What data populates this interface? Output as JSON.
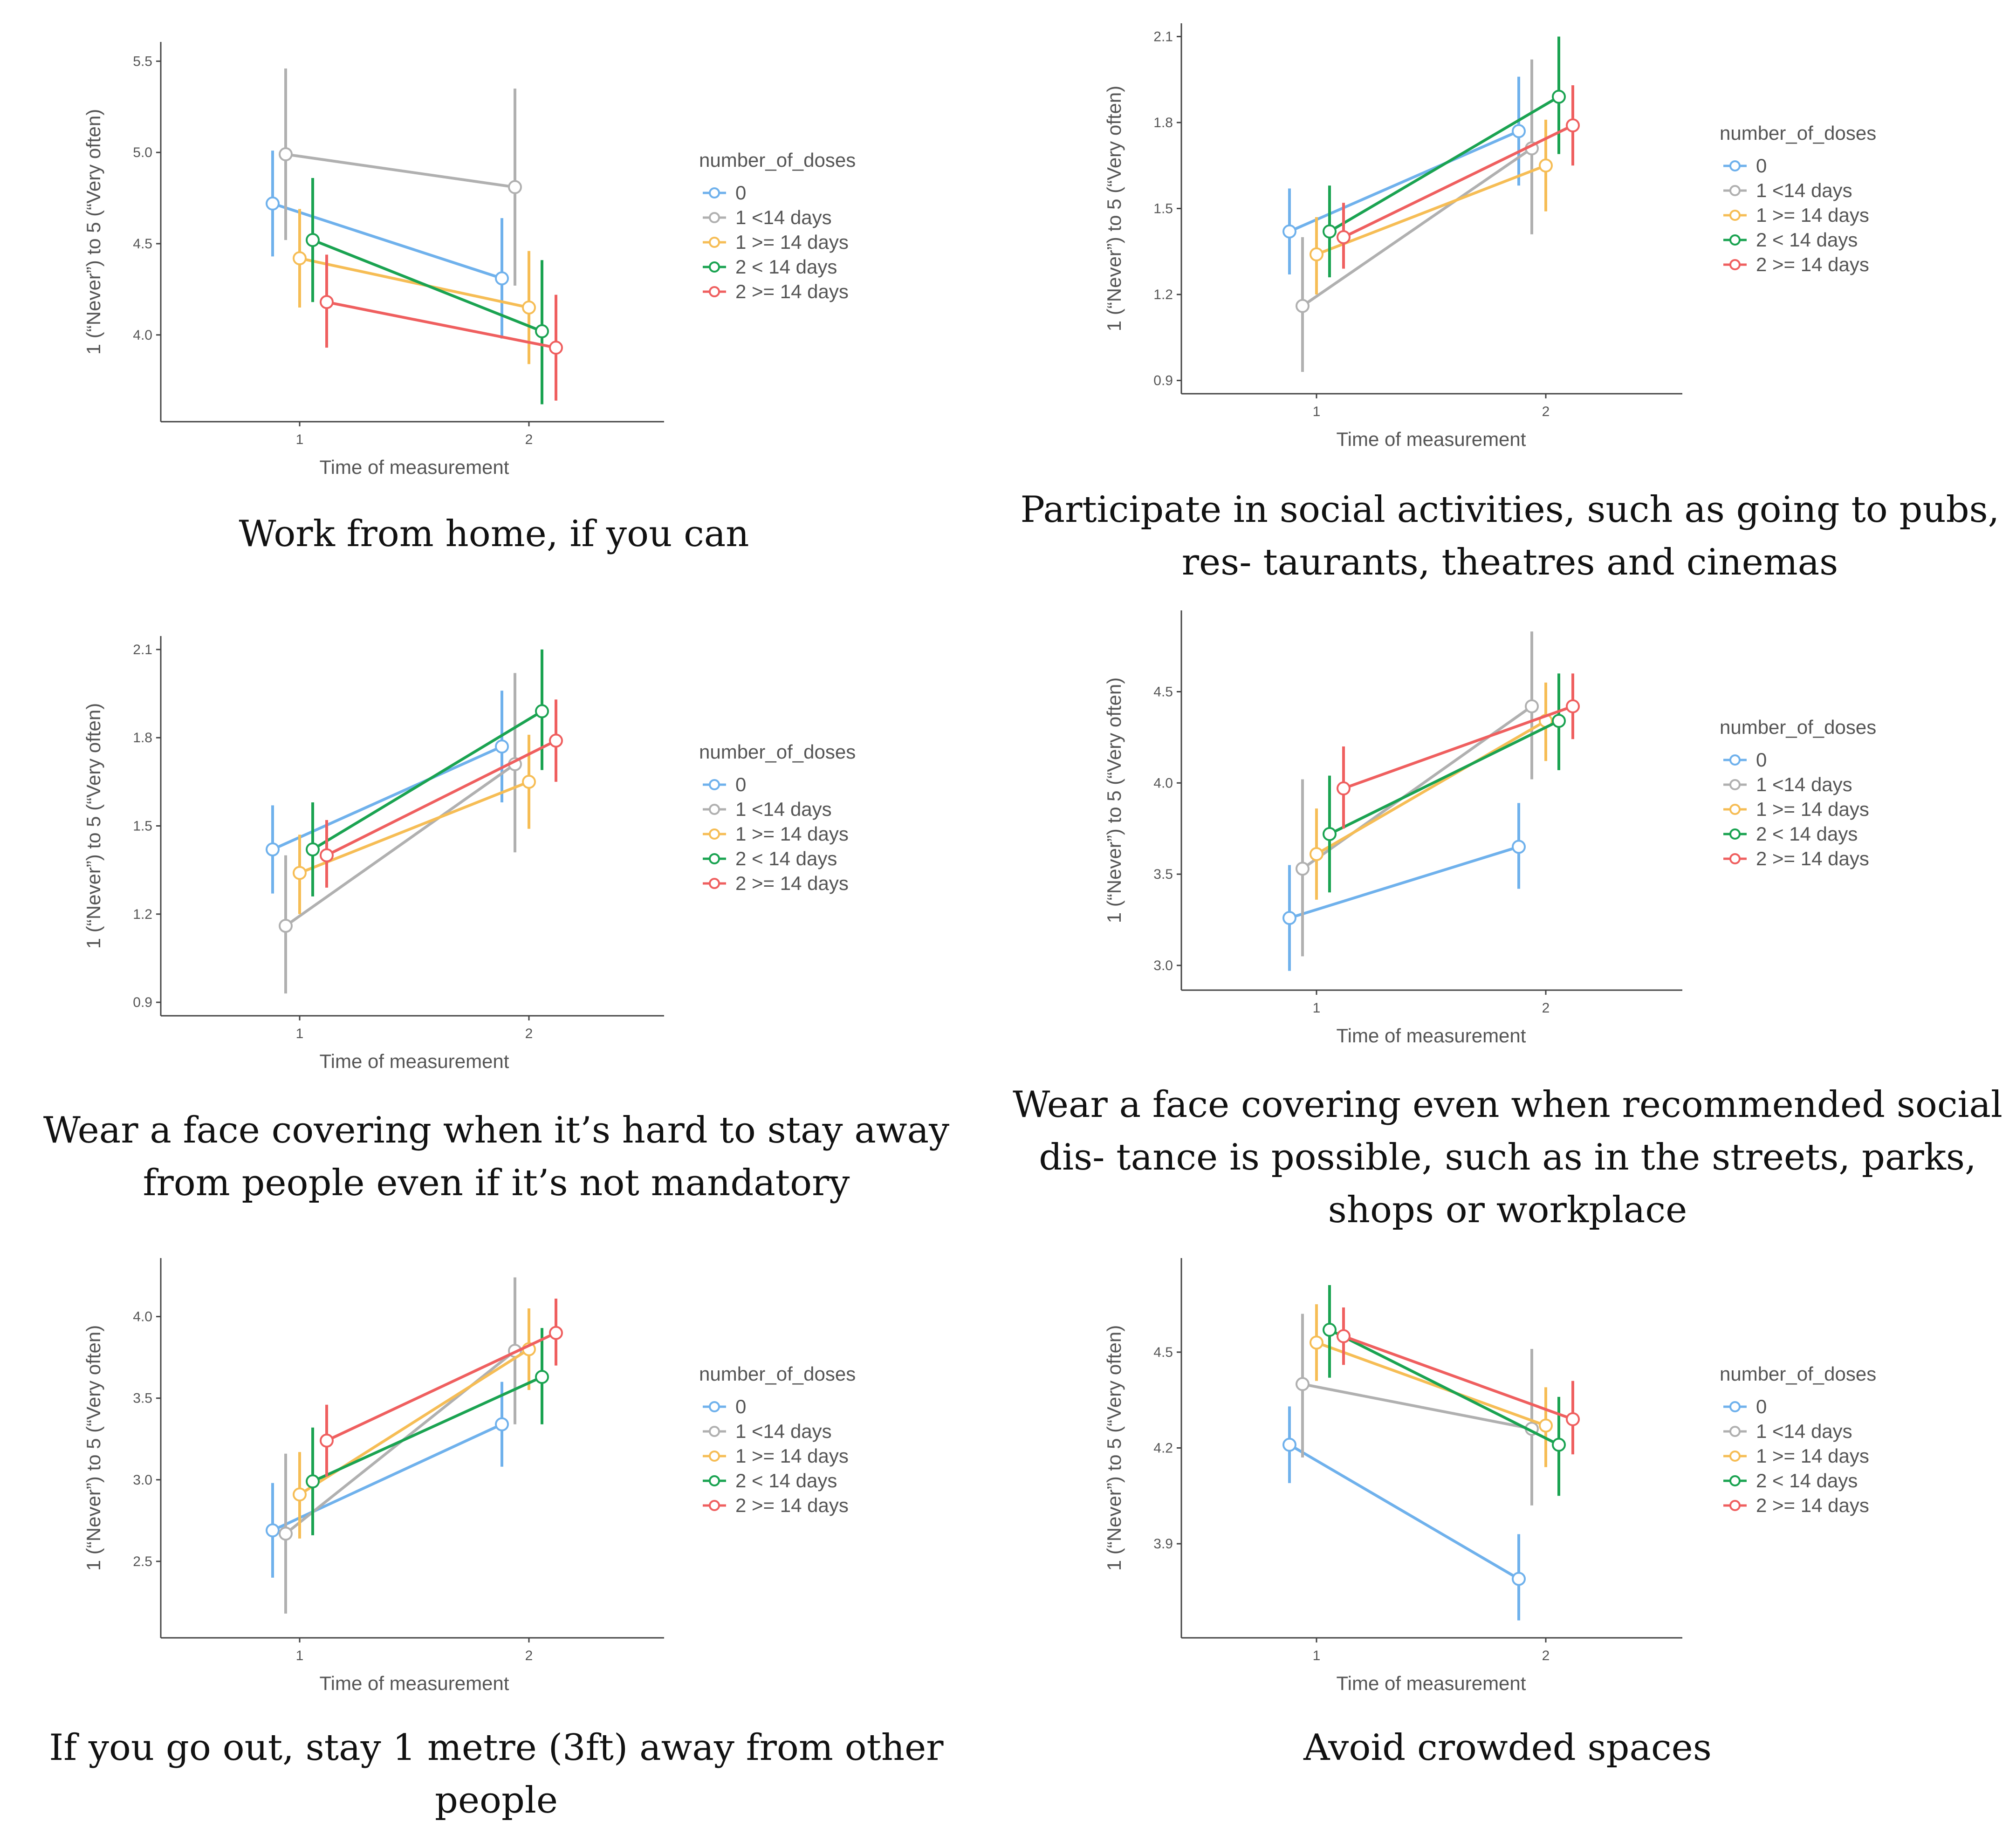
{
  "chart_data": [
    {
      "type": "line",
      "title": "Work from home, if you can",
      "xlabel": "Time of measurement",
      "ylabel": "1 (“Never”) to 5 (“Very often)",
      "x": [
        "1",
        "2"
      ],
      "yticks": [
        "4.0",
        "4.5",
        "5.0",
        "5.5"
      ],
      "ylim": [
        3.55,
        5.58
      ],
      "legend_title": "number_of_doses",
      "series": [
        {
          "name": "0",
          "color": "#6fb1ec",
          "values": [
            4.72,
            4.31
          ],
          "ci_low": [
            4.43,
            3.98
          ],
          "ci_high": [
            5.01,
            4.64
          ]
        },
        {
          "name": "1 <14 days",
          "color": "#b0b0b0",
          "values": [
            4.99,
            4.81
          ],
          "ci_low": [
            4.52,
            4.27
          ],
          "ci_high": [
            5.46,
            5.35
          ]
        },
        {
          "name": "1 >= 14 days",
          "color": "#f6bd55",
          "values": [
            4.42,
            4.15
          ],
          "ci_low": [
            4.15,
            3.84
          ],
          "ci_high": [
            4.69,
            4.46
          ]
        },
        {
          "name": "2 < 14 days",
          "color": "#1aa351",
          "values": [
            4.52,
            4.02
          ],
          "ci_low": [
            4.18,
            3.62
          ],
          "ci_high": [
            4.86,
            4.41
          ]
        },
        {
          "name": "2 >= 14 days",
          "color": "#ef5f5f",
          "values": [
            4.18,
            3.93
          ],
          "ci_low": [
            3.93,
            3.64
          ],
          "ci_high": [
            4.44,
            4.22
          ]
        }
      ]
    },
    {
      "type": "line",
      "title": "Participate in social activities, such as going to pubs, res- taurants, theatres and cinemas",
      "xlabel": "Time of measurement",
      "ylabel": "1 (“Never”) to 5 (“Very often)",
      "x": [
        "1",
        "2"
      ],
      "yticks": [
        "0.9",
        "1.2",
        "1.5",
        "1.8",
        "2.1"
      ],
      "ylim": [
        0.87,
        2.13
      ],
      "legend_title": "number_of_doses",
      "series": [
        {
          "name": "0",
          "color": "#6fb1ec",
          "values": [
            1.42,
            1.77
          ],
          "ci_low": [
            1.27,
            1.58
          ],
          "ci_high": [
            1.57,
            1.96
          ]
        },
        {
          "name": "1 <14 days",
          "color": "#b0b0b0",
          "values": [
            1.16,
            1.71
          ],
          "ci_low": [
            0.93,
            1.41
          ],
          "ci_high": [
            1.4,
            2.02
          ]
        },
        {
          "name": "1 >= 14 days",
          "color": "#f6bd55",
          "values": [
            1.34,
            1.65
          ],
          "ci_low": [
            1.2,
            1.49
          ],
          "ci_high": [
            1.47,
            1.81
          ]
        },
        {
          "name": "2 < 14 days",
          "color": "#1aa351",
          "values": [
            1.42,
            1.89
          ],
          "ci_low": [
            1.26,
            1.69
          ],
          "ci_high": [
            1.58,
            2.1
          ]
        },
        {
          "name": "2 >= 14 days",
          "color": "#ef5f5f",
          "values": [
            1.4,
            1.79
          ],
          "ci_low": [
            1.29,
            1.65
          ],
          "ci_high": [
            1.52,
            1.93
          ]
        }
      ]
    },
    {
      "type": "line",
      "title": "Wear a face covering when it’s hard to stay away from people even if it’s not mandatory",
      "xlabel": "Time of measurement",
      "ylabel": "1 (“Never”) to 5 (“Very often)",
      "x": [
        "1",
        "2"
      ],
      "yticks": [
        "0.9",
        "1.2",
        "1.5",
        "1.8",
        "2.1"
      ],
      "ylim": [
        0.87,
        2.13
      ],
      "legend_title": "number_of_doses",
      "series": [
        {
          "name": "0",
          "color": "#6fb1ec",
          "values": [
            1.42,
            1.77
          ],
          "ci_low": [
            1.27,
            1.58
          ],
          "ci_high": [
            1.57,
            1.96
          ]
        },
        {
          "name": "1 <14 days",
          "color": "#b0b0b0",
          "values": [
            1.16,
            1.71
          ],
          "ci_low": [
            0.93,
            1.41
          ],
          "ci_high": [
            1.4,
            2.02
          ]
        },
        {
          "name": "1 >= 14 days",
          "color": "#f6bd55",
          "values": [
            1.34,
            1.65
          ],
          "ci_low": [
            1.2,
            1.49
          ],
          "ci_high": [
            1.47,
            1.81
          ]
        },
        {
          "name": "2 < 14 days",
          "color": "#1aa351",
          "values": [
            1.42,
            1.89
          ],
          "ci_low": [
            1.26,
            1.69
          ],
          "ci_high": [
            1.58,
            2.1
          ]
        },
        {
          "name": "2 >= 14 days",
          "color": "#ef5f5f",
          "values": [
            1.4,
            1.79
          ],
          "ci_low": [
            1.29,
            1.65
          ],
          "ci_high": [
            1.52,
            1.93
          ]
        }
      ]
    },
    {
      "type": "line",
      "title": "Wear a face covering even when recommended social dis- tance is possible, such as in the streets, parks, shops or workplace",
      "xlabel": "Time of measurement",
      "ylabel": "1 (“Never”) to 5 (“Very often)",
      "x": [
        "1",
        "2"
      ],
      "yticks": [
        "3.0",
        "3.5",
        "4.0",
        "4.5"
      ],
      "ylim": [
        2.89,
        4.92
      ],
      "legend_title": "number_of_doses",
      "series": [
        {
          "name": "0",
          "color": "#6fb1ec",
          "values": [
            3.26,
            3.65
          ],
          "ci_low": [
            2.97,
            3.42
          ],
          "ci_high": [
            3.55,
            3.89
          ]
        },
        {
          "name": "1 <14 days",
          "color": "#b0b0b0",
          "values": [
            3.53,
            4.42
          ],
          "ci_low": [
            3.05,
            4.02
          ],
          "ci_high": [
            4.02,
            4.83
          ]
        },
        {
          "name": "1 >= 14 days",
          "color": "#f6bd55",
          "values": [
            3.61,
            4.34
          ],
          "ci_low": [
            3.36,
            4.12
          ],
          "ci_high": [
            3.86,
            4.55
          ]
        },
        {
          "name": "2 < 14 days",
          "color": "#1aa351",
          "values": [
            3.72,
            4.34
          ],
          "ci_low": [
            3.4,
            4.07
          ],
          "ci_high": [
            4.04,
            4.6
          ]
        },
        {
          "name": "2 >= 14 days",
          "color": "#ef5f5f",
          "values": [
            3.97,
            4.42
          ],
          "ci_low": [
            3.75,
            4.24
          ],
          "ci_high": [
            4.2,
            4.6
          ]
        }
      ]
    },
    {
      "type": "line",
      "title": "If you go out, stay 1 metre (3ft) away from other people",
      "xlabel": "Time of measurement",
      "ylabel": "1 (“Never”) to 5 (“Very often)",
      "x": [
        "1",
        "2"
      ],
      "yticks": [
        "2.5",
        "3.0",
        "3.5",
        "4.0"
      ],
      "ylim": [
        2.06,
        4.33
      ],
      "legend_title": "number_of_doses",
      "series": [
        {
          "name": "0",
          "color": "#6fb1ec",
          "values": [
            2.69,
            3.34
          ],
          "ci_low": [
            2.4,
            3.08
          ],
          "ci_high": [
            2.98,
            3.6
          ]
        },
        {
          "name": "1 <14 days",
          "color": "#b0b0b0",
          "values": [
            2.67,
            3.79
          ],
          "ci_low": [
            2.18,
            3.34
          ],
          "ci_high": [
            3.16,
            4.24
          ]
        },
        {
          "name": "1 >= 14 days",
          "color": "#f6bd55",
          "values": [
            2.91,
            3.8
          ],
          "ci_low": [
            2.64,
            3.55
          ],
          "ci_high": [
            3.17,
            4.05
          ]
        },
        {
          "name": "2 < 14 days",
          "color": "#1aa351",
          "values": [
            2.99,
            3.63
          ],
          "ci_low": [
            2.66,
            3.34
          ],
          "ci_high": [
            3.32,
            3.93
          ]
        },
        {
          "name": "2 >= 14 days",
          "color": "#ef5f5f",
          "values": [
            3.24,
            3.9
          ],
          "ci_low": [
            3.02,
            3.7
          ],
          "ci_high": [
            3.46,
            4.11
          ]
        }
      ]
    },
    {
      "type": "line",
      "title": "Avoid crowded spaces",
      "xlabel": "Time of measurement",
      "ylabel": "1 (“Never”) to 5 (“Very often)",
      "x": [
        "1",
        "2"
      ],
      "yticks": [
        "3.9",
        "4.2",
        "4.5"
      ],
      "ylim": [
        3.62,
        4.78
      ],
      "legend_title": "number_of_doses",
      "series": [
        {
          "name": "0",
          "color": "#6fb1ec",
          "values": [
            4.21,
            3.79
          ],
          "ci_low": [
            4.09,
            3.66
          ],
          "ci_high": [
            4.33,
            3.93
          ]
        },
        {
          "name": "1 <14 days",
          "color": "#b0b0b0",
          "values": [
            4.4,
            4.26
          ],
          "ci_low": [
            4.17,
            4.02
          ],
          "ci_high": [
            4.62,
            4.51
          ]
        },
        {
          "name": "1 >= 14 days",
          "color": "#f6bd55",
          "values": [
            4.53,
            4.27
          ],
          "ci_low": [
            4.41,
            4.14
          ],
          "ci_high": [
            4.65,
            4.39
          ]
        },
        {
          "name": "2 < 14 days",
          "color": "#1aa351",
          "values": [
            4.57,
            4.21
          ],
          "ci_low": [
            4.42,
            4.05
          ],
          "ci_high": [
            4.71,
            4.36
          ]
        },
        {
          "name": "2 >= 14 days",
          "color": "#ef5f5f",
          "values": [
            4.55,
            4.29
          ],
          "ci_low": [
            4.46,
            4.18
          ],
          "ci_high": [
            4.64,
            4.41
          ]
        }
      ]
    }
  ]
}
